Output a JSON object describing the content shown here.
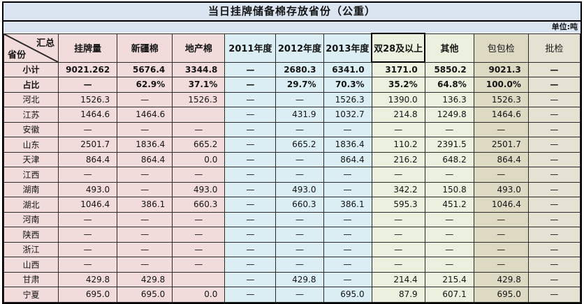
{
  "colors": {
    "band": "#dbe5f1",
    "pink": "#f2dcdb",
    "blue": "#daeef3",
    "green": "#ebf1de",
    "tan": "#ddd9c3",
    "tan2": "#e6e2d3"
  },
  "chart_data": {
    "type": "table",
    "title": "当日挂牌储备棉存放省份（公重）",
    "unit_label": "单位:吨",
    "corner": {
      "top": "汇总",
      "bottom": "省份"
    },
    "columns": [
      {
        "label": "挂牌量",
        "color": "pink"
      },
      {
        "label": "新疆棉",
        "color": "pink"
      },
      {
        "label": "地产棉",
        "color": "pink"
      },
      {
        "label": "2011年度",
        "color": "blue"
      },
      {
        "label": "2012年度",
        "color": "blue"
      },
      {
        "label": "2013年度",
        "color": "blue"
      },
      {
        "label": "双28及以上",
        "color": "green",
        "emphasized": true
      },
      {
        "label": "其他",
        "color": "green"
      },
      {
        "label": "包包检",
        "color": "tan",
        "header_regular": true
      },
      {
        "label": "批检",
        "color": "tan2",
        "header_regular": true
      }
    ],
    "rows": [
      {
        "label": "小计",
        "bold": true,
        "values": [
          "9021.262",
          "5676.4",
          "3344.8",
          "—",
          "2680.3",
          "6341.0",
          "3171.0",
          "5850.2",
          "9021.3",
          "—"
        ]
      },
      {
        "label": "占比",
        "bold": true,
        "values": [
          "—",
          "62.9%",
          "37.1%",
          "—",
          "29.7%",
          "70.3%",
          "35.2%",
          "64.8%",
          "100.0%",
          "—"
        ]
      },
      {
        "label": "河北",
        "values": [
          "1526.3",
          "—",
          "1526.3",
          "—",
          "—",
          "1526.3",
          "1390.0",
          "136.3",
          "1526.3",
          "—"
        ]
      },
      {
        "label": "江苏",
        "values": [
          "1464.6",
          "1464.6",
          "",
          "—",
          "431.9",
          "1032.7",
          "214.8",
          "1249.8",
          "1464.6",
          "—"
        ]
      },
      {
        "label": "安徽",
        "values": [
          "—",
          "—",
          "—",
          "—",
          "—",
          "—",
          "—",
          "—",
          "—",
          "—"
        ]
      },
      {
        "label": "山东",
        "values": [
          "2501.7",
          "1836.4",
          "665.2",
          "—",
          "665.2",
          "1836.4",
          "110.2",
          "2391.5",
          "2501.7",
          "—"
        ]
      },
      {
        "label": "天津",
        "values": [
          "864.4",
          "864.4",
          "0.0",
          "—",
          "—",
          "864.4",
          "216.2",
          "648.2",
          "864.4",
          "—"
        ]
      },
      {
        "label": "江西",
        "values": [
          "—",
          "—",
          "—",
          "—",
          "—",
          "—",
          "—",
          "—",
          "—",
          "—"
        ]
      },
      {
        "label": "湖南",
        "values": [
          "493.0",
          "—",
          "493.0",
          "—",
          "493.0",
          "—",
          "342.2",
          "150.8",
          "493.0",
          "—"
        ]
      },
      {
        "label": "湖北",
        "values": [
          "1046.4",
          "386.1",
          "660.3",
          "—",
          "660.3",
          "386.1",
          "595.3",
          "451.2",
          "1046.4",
          "—"
        ]
      },
      {
        "label": "河南",
        "values": [
          "—",
          "—",
          "—",
          "—",
          "—",
          "—",
          "—",
          "—",
          "—",
          "—"
        ]
      },
      {
        "label": "陕西",
        "values": [
          "—",
          "—",
          "—",
          "—",
          "—",
          "—",
          "—",
          "—",
          "—",
          "—"
        ]
      },
      {
        "label": "浙江",
        "values": [
          "—",
          "—",
          "—",
          "—",
          "—",
          "—",
          "—",
          "—",
          "—",
          "—"
        ]
      },
      {
        "label": "山西",
        "values": [
          "—",
          "—",
          "—",
          "—",
          "—",
          "—",
          "—",
          "—",
          "—",
          "—"
        ]
      },
      {
        "label": "甘肃",
        "values": [
          "429.8",
          "429.8",
          "",
          "—",
          "429.8",
          "—",
          "214.4",
          "215.4",
          "429.8",
          "—"
        ]
      },
      {
        "label": "宁夏",
        "values": [
          "695.0",
          "695.0",
          "0.0",
          "—",
          "—",
          "695.0",
          "87.9",
          "607.1",
          "695.0",
          "—"
        ]
      }
    ]
  }
}
